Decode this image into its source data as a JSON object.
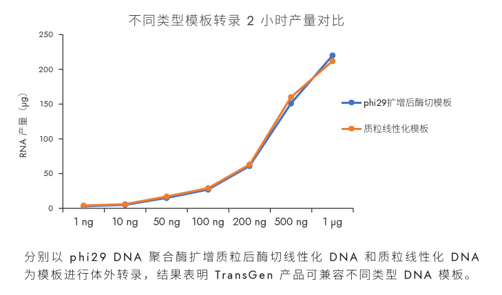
{
  "figure": {
    "title": "不同类型模板转录 2 小时产量对比",
    "caption": {
      "line1": "分别以 phi29 DNA 聚合酶扩增质粒后酶切线性化 DNA 和质粒线性化 DNA",
      "line2": "为模板进行体外转录，结果表明 TransGen 产品可兼容不同类型 DNA 模板。"
    }
  },
  "chart_data": {
    "type": "line",
    "title": "不同类型模板转录 2 小时产量对比",
    "xlabel": "",
    "ylabel": "RNA 产量（μg）",
    "categories": [
      "1 ng",
      "10 ng",
      "50 ng",
      "100 ng",
      "200 ng",
      "500 ng",
      "1 μg"
    ],
    "series": [
      {
        "name": "phi29扩增后酶切模板",
        "color": "#4472C4",
        "values": [
          3,
          5,
          15,
          27,
          61,
          151,
          220
        ]
      },
      {
        "name": "质粒线性化模板",
        "color": "#ED7D31",
        "values": [
          4,
          6,
          17,
          29,
          63,
          160,
          212
        ]
      }
    ],
    "ylim": [
      0,
      250
    ],
    "ytick_step": 50,
    "grid": false,
    "legend_position": "right",
    "marker": "circle",
    "axis_color": "#262626"
  }
}
